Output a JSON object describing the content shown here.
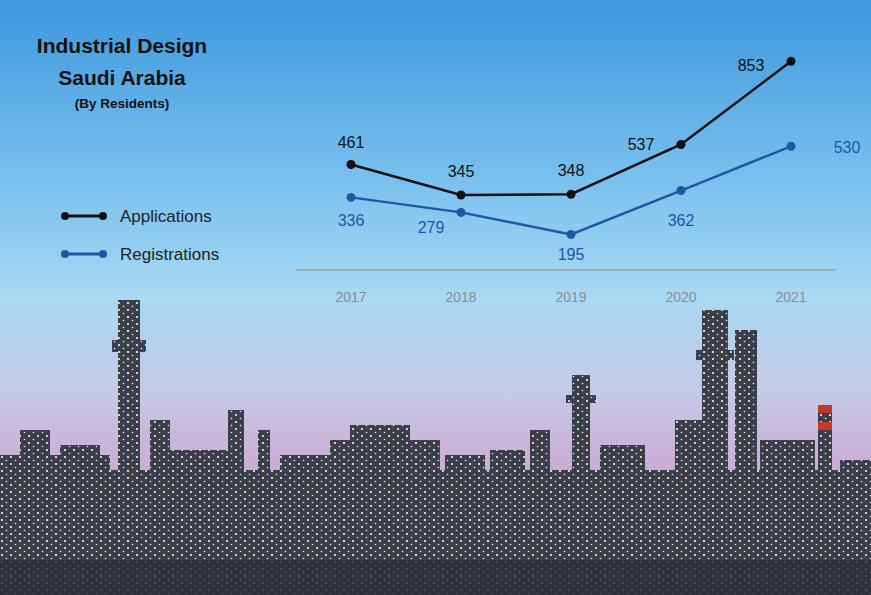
{
  "chart_data": {
    "type": "line",
    "title": "Industrial Design Saudi Arabia",
    "subtitle": "(By Residents)",
    "categories": [
      "2017",
      "2018",
      "2019",
      "2020",
      "2021"
    ],
    "series": [
      {
        "name": "Applications",
        "color": "#111111",
        "marker": "circle",
        "line_style": "solid",
        "values": [
          461,
          345,
          348,
          537,
          853
        ]
      },
      {
        "name": "Registrations",
        "color": "#1f56a6",
        "marker": "circle",
        "line_style": "solid",
        "values": [
          336,
          279,
          195,
          362,
          530
        ]
      }
    ],
    "ylim": [
      60,
      900
    ],
    "tick_labels": "x",
    "grid": false,
    "legend": "left",
    "data_labels": true
  }
}
